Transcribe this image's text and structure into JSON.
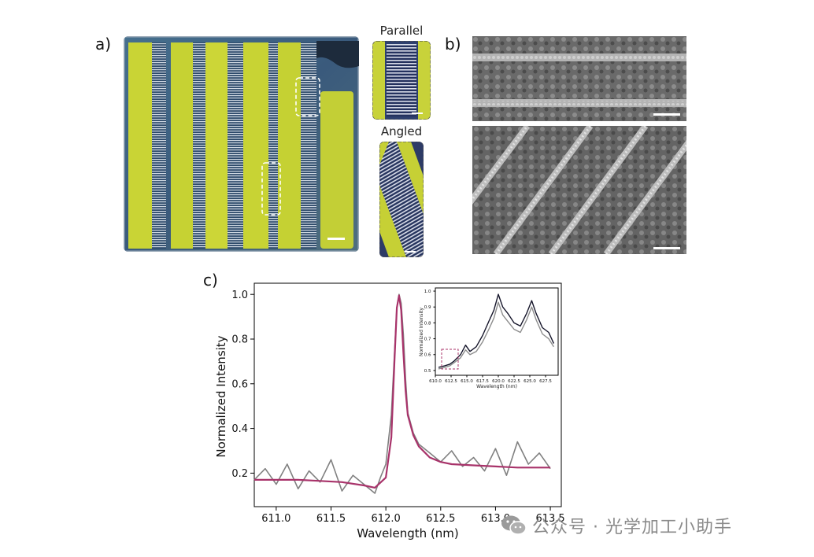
{
  "panels": {
    "a": "a)",
    "b": "b)",
    "c": "c)"
  },
  "insets": {
    "parallel": "Parallel",
    "angled": "Angled"
  },
  "chart_data": {
    "type": "line",
    "xlabel": "Wavelength (nm)",
    "ylabel": "Normalized Intensity",
    "xlim": [
      610.8,
      613.6
    ],
    "ylim": [
      0.05,
      1.05
    ],
    "xticks": [
      "611.0",
      "611.5",
      "612.0",
      "612.5",
      "613.0",
      "613.5"
    ],
    "yticks": [
      "0.2",
      "0.4",
      "0.6",
      "0.8",
      "1.0"
    ],
    "grid": false,
    "series": [
      {
        "color": "#808080",
        "style": "noisy measured spectrum",
        "x": [
          610.8,
          610.9,
          611.0,
          611.1,
          611.2,
          611.3,
          611.4,
          611.5,
          611.6,
          611.7,
          611.8,
          611.9,
          611.95,
          612.0,
          612.05,
          612.08,
          612.1,
          612.12,
          612.14,
          612.16,
          612.18,
          612.2,
          612.25,
          612.3,
          612.4,
          612.5,
          612.6,
          612.7,
          612.8,
          612.9,
          613.0,
          613.1,
          613.2,
          613.3,
          613.4,
          613.5
        ],
        "y": [
          0.17,
          0.22,
          0.15,
          0.24,
          0.13,
          0.21,
          0.16,
          0.26,
          0.12,
          0.19,
          0.15,
          0.11,
          0.18,
          0.24,
          0.46,
          0.75,
          0.94,
          1.0,
          0.96,
          0.82,
          0.62,
          0.47,
          0.38,
          0.33,
          0.29,
          0.25,
          0.3,
          0.23,
          0.27,
          0.21,
          0.31,
          0.19,
          0.34,
          0.24,
          0.29,
          0.22
        ]
      },
      {
        "color": "#a8336a",
        "style": "Lorentzian fit",
        "x": [
          610.8,
          611.0,
          611.2,
          611.4,
          611.6,
          611.8,
          611.9,
          612.0,
          612.05,
          612.08,
          612.1,
          612.12,
          612.14,
          612.16,
          612.18,
          612.2,
          612.25,
          612.3,
          612.4,
          612.5,
          612.6,
          612.8,
          613.0,
          613.2,
          613.5
        ],
        "y": [
          0.17,
          0.17,
          0.17,
          0.165,
          0.16,
          0.145,
          0.135,
          0.18,
          0.36,
          0.72,
          0.94,
          0.995,
          0.93,
          0.74,
          0.57,
          0.46,
          0.37,
          0.32,
          0.27,
          0.25,
          0.24,
          0.235,
          0.23,
          0.225,
          0.225
        ]
      }
    ],
    "inset": {
      "xlabel": "Wavelength (nm)",
      "ylabel": "Normalized Intensity",
      "xlim": [
        610.0,
        629.5
      ],
      "ylim": [
        0.47,
        1.02
      ],
      "xticks": [
        "610.0",
        "612.5",
        "615.0",
        "617.5",
        "620.0",
        "622.5",
        "625.0",
        "627.5"
      ],
      "yticks": [
        "0.5",
        "0.6",
        "0.7",
        "0.8",
        "0.9",
        "1.0"
      ],
      "series": [
        {
          "color": "#15152a",
          "x": [
            610.5,
            611.5,
            612.3,
            613.0,
            614.0,
            614.8,
            615.5,
            616.5,
            617.5,
            618.5,
            619.3,
            620.0,
            620.7,
            621.5,
            622.5,
            623.5,
            624.5,
            625.3,
            626.0,
            627.0,
            628.0,
            628.8
          ],
          "y": [
            0.52,
            0.53,
            0.54,
            0.56,
            0.6,
            0.66,
            0.62,
            0.65,
            0.72,
            0.81,
            0.88,
            0.98,
            0.9,
            0.86,
            0.8,
            0.78,
            0.86,
            0.94,
            0.86,
            0.77,
            0.74,
            0.67
          ]
        },
        {
          "color": "#8c8c8c",
          "x": [
            610.5,
            611.5,
            612.3,
            613.0,
            614.0,
            614.8,
            615.5,
            616.5,
            617.5,
            618.5,
            619.3,
            620.0,
            620.7,
            621.5,
            622.5,
            623.5,
            624.5,
            625.3,
            626.0,
            627.0,
            628.0,
            628.8
          ],
          "y": [
            0.51,
            0.52,
            0.53,
            0.55,
            0.58,
            0.63,
            0.6,
            0.62,
            0.68,
            0.76,
            0.83,
            0.93,
            0.85,
            0.81,
            0.76,
            0.74,
            0.82,
            0.9,
            0.82,
            0.73,
            0.7,
            0.65
          ]
        }
      ]
    }
  },
  "watermark": "公众号 · 光学加工小助手"
}
